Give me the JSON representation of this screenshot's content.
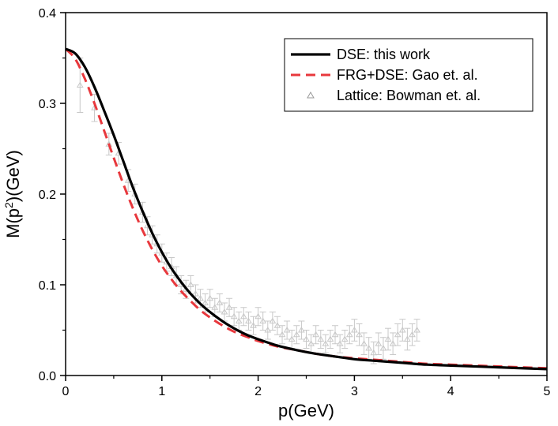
{
  "chart_data": {
    "type": "line",
    "xlabel": "p(GeV)",
    "ylabel": {
      "prefix": "M(p",
      "sup": "2",
      "suffix": ")(GeV)"
    },
    "xlim": [
      0,
      5
    ],
    "ylim": [
      0,
      0.4
    ],
    "xticks": [
      {
        "value": 0,
        "label": "0"
      },
      {
        "value": 1,
        "label": "1"
      },
      {
        "value": 2,
        "label": "2"
      },
      {
        "value": 3,
        "label": "3"
      },
      {
        "value": 4,
        "label": "4"
      },
      {
        "value": 5,
        "label": "5"
      }
    ],
    "yticks": [
      {
        "value": 0.0,
        "label": "0.0"
      },
      {
        "value": 0.1,
        "label": "0.1"
      },
      {
        "value": 0.2,
        "label": "0.2"
      },
      {
        "value": 0.3,
        "label": "0.3"
      },
      {
        "value": 0.4,
        "label": "0.4"
      }
    ],
    "grid": false,
    "legend_position": "top-right",
    "series": [
      {
        "name": "DSE: this work",
        "style": "solid",
        "color": "#000000",
        "x": [
          0,
          0.1,
          0.2,
          0.3,
          0.4,
          0.5,
          0.6,
          0.7,
          0.8,
          0.9,
          1.0,
          1.1,
          1.2,
          1.3,
          1.4,
          1.5,
          1.6,
          1.7,
          1.8,
          1.9,
          2.0,
          2.2,
          2.4,
          2.6,
          2.8,
          3.0,
          3.25,
          3.5,
          3.75,
          4.0,
          4.5,
          5.0
        ],
        "y": [
          0.36,
          0.355,
          0.34,
          0.318,
          0.292,
          0.265,
          0.236,
          0.207,
          0.181,
          0.157,
          0.136,
          0.118,
          0.103,
          0.09,
          0.079,
          0.07,
          0.062,
          0.055,
          0.049,
          0.044,
          0.04,
          0.033,
          0.028,
          0.024,
          0.021,
          0.018,
          0.016,
          0.014,
          0.012,
          0.011,
          0.009,
          0.007
        ]
      },
      {
        "name": "FRG+DSE: Gao et. al.",
        "style": "dashed",
        "color": "#e8383d",
        "x": [
          0,
          0.1,
          0.2,
          0.3,
          0.4,
          0.5,
          0.6,
          0.7,
          0.8,
          0.9,
          1.0,
          1.1,
          1.2,
          1.3,
          1.4,
          1.5,
          1.6,
          1.7,
          1.8,
          1.9,
          2.0,
          2.2,
          2.4,
          2.6,
          2.8,
          3.0,
          3.25,
          3.5,
          3.75,
          4.0,
          4.5,
          5.0
        ],
        "y": [
          0.36,
          0.349,
          0.327,
          0.3,
          0.27,
          0.24,
          0.211,
          0.184,
          0.16,
          0.139,
          0.121,
          0.106,
          0.093,
          0.082,
          0.072,
          0.064,
          0.057,
          0.051,
          0.046,
          0.042,
          0.038,
          0.032,
          0.028,
          0.024,
          0.021,
          0.019,
          0.017,
          0.015,
          0.013,
          0.012,
          0.01,
          0.008
        ]
      },
      {
        "name": "Lattice: Bowman et. al.",
        "style": "markers",
        "color": "#c8c8c8",
        "marker": "triangle-open",
        "x": [
          0.15,
          0.3,
          0.45,
          0.55,
          0.65,
          0.72,
          0.8,
          0.85,
          0.9,
          0.95,
          1.0,
          1.05,
          1.1,
          1.15,
          1.2,
          1.25,
          1.3,
          1.35,
          1.4,
          1.45,
          1.5,
          1.55,
          1.6,
          1.65,
          1.7,
          1.75,
          1.8,
          1.85,
          1.9,
          1.95,
          2.0,
          2.05,
          2.1,
          2.15,
          2.2,
          2.25,
          2.3,
          2.35,
          2.4,
          2.45,
          2.5,
          2.55,
          2.6,
          2.65,
          2.7,
          2.75,
          2.8,
          2.85,
          2.9,
          2.95,
          3.0,
          3.05,
          3.1,
          3.15,
          3.2,
          3.25,
          3.3,
          3.35,
          3.4,
          3.45,
          3.5,
          3.55,
          3.6,
          3.65
        ],
        "y": [
          0.32,
          0.295,
          0.255,
          0.245,
          0.215,
          0.2,
          0.18,
          0.165,
          0.155,
          0.145,
          0.135,
          0.125,
          0.12,
          0.11,
          0.1,
          0.095,
          0.1,
          0.09,
          0.085,
          0.08,
          0.085,
          0.075,
          0.08,
          0.07,
          0.075,
          0.065,
          0.06,
          0.065,
          0.06,
          0.055,
          0.065,
          0.06,
          0.05,
          0.06,
          0.055,
          0.045,
          0.05,
          0.04,
          0.045,
          0.05,
          0.04,
          0.035,
          0.045,
          0.04,
          0.035,
          0.04,
          0.045,
          0.035,
          0.04,
          0.045,
          0.05,
          0.045,
          0.035,
          0.03,
          0.025,
          0.035,
          0.03,
          0.04,
          0.035,
          0.045,
          0.05,
          0.04,
          0.045,
          0.05
        ],
        "err": [
          0.03,
          0.015,
          0.012,
          0.012,
          0.012,
          0.011,
          0.011,
          0.01,
          0.01,
          0.01,
          0.01,
          0.01,
          0.01,
          0.01,
          0.01,
          0.01,
          0.01,
          0.01,
          0.01,
          0.01,
          0.01,
          0.01,
          0.01,
          0.01,
          0.01,
          0.01,
          0.01,
          0.01,
          0.01,
          0.01,
          0.01,
          0.01,
          0.01,
          0.01,
          0.01,
          0.01,
          0.01,
          0.01,
          0.01,
          0.01,
          0.01,
          0.01,
          0.01,
          0.01,
          0.01,
          0.01,
          0.01,
          0.01,
          0.01,
          0.01,
          0.012,
          0.012,
          0.012,
          0.012,
          0.012,
          0.012,
          0.012,
          0.012,
          0.012,
          0.012,
          0.012,
          0.012,
          0.012,
          0.012
        ]
      }
    ]
  }
}
